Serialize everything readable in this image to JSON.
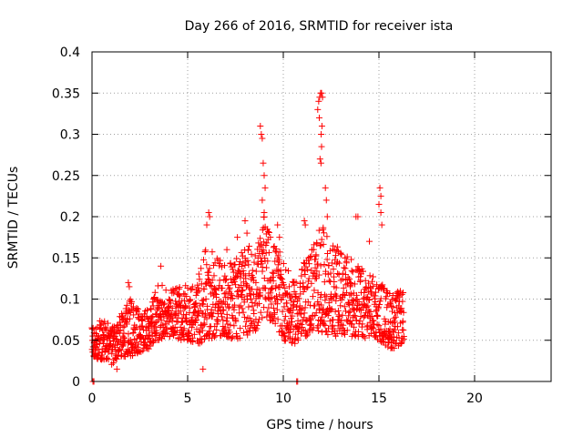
{
  "chart_data": {
    "type": "scatter",
    "title": "Day 266 of 2016, SRMTID for receiver ista",
    "xlabel": "GPS time / hours",
    "ylabel": "SRMTID / TECUs",
    "xlim": [
      0,
      24
    ],
    "ylim": [
      0,
      0.4
    ],
    "grid": true,
    "marker": "+",
    "series_color": "#ff0000",
    "xticks": [
      {
        "value": 0,
        "label": "0"
      },
      {
        "value": 5,
        "label": "5"
      },
      {
        "value": 10,
        "label": "10"
      },
      {
        "value": 15,
        "label": "15"
      },
      {
        "value": 20,
        "label": "20"
      }
    ],
    "yticks": [
      {
        "value": 0,
        "label": "0"
      },
      {
        "value": 0.05,
        "label": "0.05"
      },
      {
        "value": 0.1,
        "label": "0.1"
      },
      {
        "value": 0.15,
        "label": "0.15"
      },
      {
        "value": 0.2,
        "label": "0.2"
      },
      {
        "value": 0.25,
        "label": "0.25"
      },
      {
        "value": 0.3,
        "label": "0.3"
      },
      {
        "value": 0.35,
        "label": "0.35"
      },
      {
        "value": 0.4,
        "label": "0.4"
      }
    ],
    "envelope": [
      {
        "x": 0.0,
        "lo": 0.03,
        "hi": 0.085
      },
      {
        "x": 0.5,
        "lo": 0.025,
        "hi": 0.075
      },
      {
        "x": 1.0,
        "lo": 0.02,
        "hi": 0.07
      },
      {
        "x": 1.5,
        "lo": 0.03,
        "hi": 0.08
      },
      {
        "x": 2.0,
        "lo": 0.03,
        "hi": 0.1
      },
      {
        "x": 2.5,
        "lo": 0.035,
        "hi": 0.085
      },
      {
        "x": 3.0,
        "lo": 0.04,
        "hi": 0.09
      },
      {
        "x": 3.5,
        "lo": 0.05,
        "hi": 0.12
      },
      {
        "x": 4.0,
        "lo": 0.055,
        "hi": 0.11
      },
      {
        "x": 4.5,
        "lo": 0.05,
        "hi": 0.115
      },
      {
        "x": 5.0,
        "lo": 0.05,
        "hi": 0.12
      },
      {
        "x": 5.5,
        "lo": 0.045,
        "hi": 0.125
      },
      {
        "x": 6.0,
        "lo": 0.05,
        "hi": 0.17
      },
      {
        "x": 6.5,
        "lo": 0.055,
        "hi": 0.15
      },
      {
        "x": 7.0,
        "lo": 0.055,
        "hi": 0.145
      },
      {
        "x": 7.5,
        "lo": 0.05,
        "hi": 0.15
      },
      {
        "x": 8.0,
        "lo": 0.055,
        "hi": 0.17
      },
      {
        "x": 8.5,
        "lo": 0.06,
        "hi": 0.16
      },
      {
        "x": 9.0,
        "lo": 0.08,
        "hi": 0.2
      },
      {
        "x": 9.5,
        "lo": 0.07,
        "hi": 0.17
      },
      {
        "x": 10.0,
        "lo": 0.05,
        "hi": 0.15
      },
      {
        "x": 10.5,
        "lo": 0.045,
        "hi": 0.12
      },
      {
        "x": 11.0,
        "lo": 0.05,
        "hi": 0.14
      },
      {
        "x": 11.5,
        "lo": 0.06,
        "hi": 0.17
      },
      {
        "x": 12.0,
        "lo": 0.06,
        "hi": 0.19
      },
      {
        "x": 12.5,
        "lo": 0.055,
        "hi": 0.17
      },
      {
        "x": 13.0,
        "lo": 0.055,
        "hi": 0.16
      },
      {
        "x": 13.5,
        "lo": 0.055,
        "hi": 0.15
      },
      {
        "x": 14.0,
        "lo": 0.05,
        "hi": 0.14
      },
      {
        "x": 14.5,
        "lo": 0.055,
        "hi": 0.13
      },
      {
        "x": 15.0,
        "lo": 0.05,
        "hi": 0.125
      },
      {
        "x": 15.5,
        "lo": 0.04,
        "hi": 0.11
      },
      {
        "x": 16.0,
        "lo": 0.04,
        "hi": 0.11
      },
      {
        "x": 16.3,
        "lo": 0.05,
        "hi": 0.11
      }
    ],
    "x_step_hours": 0.02,
    "point_density": 2,
    "outliers": [
      {
        "x": 0.05,
        "y": 0.0
      },
      {
        "x": 0.1,
        "y": 0.0
      },
      {
        "x": 10.7,
        "y": 0.0
      },
      {
        "x": 10.75,
        "y": 0.0
      },
      {
        "x": 1.3,
        "y": 0.015
      },
      {
        "x": 5.8,
        "y": 0.015
      },
      {
        "x": 1.9,
        "y": 0.12
      },
      {
        "x": 1.95,
        "y": 0.115
      },
      {
        "x": 3.6,
        "y": 0.14
      },
      {
        "x": 6.0,
        "y": 0.19
      },
      {
        "x": 6.1,
        "y": 0.205
      },
      {
        "x": 6.15,
        "y": 0.2
      },
      {
        "x": 7.05,
        "y": 0.16
      },
      {
        "x": 7.6,
        "y": 0.175
      },
      {
        "x": 8.0,
        "y": 0.195
      },
      {
        "x": 8.1,
        "y": 0.18
      },
      {
        "x": 8.8,
        "y": 0.31
      },
      {
        "x": 8.85,
        "y": 0.3
      },
      {
        "x": 8.9,
        "y": 0.295
      },
      {
        "x": 8.95,
        "y": 0.265
      },
      {
        "x": 9.0,
        "y": 0.25
      },
      {
        "x": 9.05,
        "y": 0.235
      },
      {
        "x": 8.9,
        "y": 0.22
      },
      {
        "x": 9.0,
        "y": 0.205
      },
      {
        "x": 9.7,
        "y": 0.19
      },
      {
        "x": 9.8,
        "y": 0.175
      },
      {
        "x": 11.1,
        "y": 0.195
      },
      {
        "x": 11.15,
        "y": 0.19
      },
      {
        "x": 11.8,
        "y": 0.33
      },
      {
        "x": 11.85,
        "y": 0.34
      },
      {
        "x": 11.9,
        "y": 0.345
      },
      {
        "x": 11.95,
        "y": 0.35
      },
      {
        "x": 12.0,
        "y": 0.35
      },
      {
        "x": 12.05,
        "y": 0.345
      },
      {
        "x": 11.88,
        "y": 0.32
      },
      {
        "x": 12.02,
        "y": 0.31
      },
      {
        "x": 11.98,
        "y": 0.3
      },
      {
        "x": 12.0,
        "y": 0.285
      },
      {
        "x": 11.92,
        "y": 0.27
      },
      {
        "x": 11.97,
        "y": 0.265
      },
      {
        "x": 12.2,
        "y": 0.235
      },
      {
        "x": 12.25,
        "y": 0.22
      },
      {
        "x": 12.3,
        "y": 0.2
      },
      {
        "x": 13.8,
        "y": 0.2
      },
      {
        "x": 13.9,
        "y": 0.2
      },
      {
        "x": 14.5,
        "y": 0.17
      },
      {
        "x": 15.05,
        "y": 0.235
      },
      {
        "x": 15.1,
        "y": 0.225
      },
      {
        "x": 15.0,
        "y": 0.215
      },
      {
        "x": 15.1,
        "y": 0.205
      },
      {
        "x": 15.15,
        "y": 0.19
      }
    ]
  }
}
